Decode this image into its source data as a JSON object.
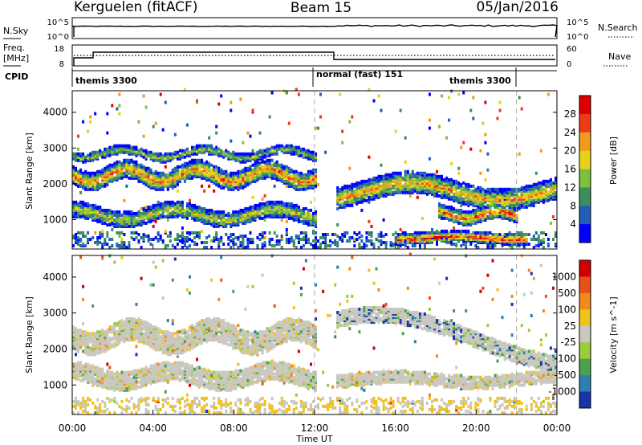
{
  "header": {
    "station": "Kerguelen (fitACF)",
    "beam": "Beam 15",
    "date": "05/Jan/2016"
  },
  "strip_labels": {
    "nsky": "N.Sky",
    "nsearch": "N.Search",
    "freq": "Freq.",
    "freq_unit": "[MHz]",
    "nave": "Nave",
    "cpid": "CPID"
  },
  "strip_ticks": {
    "noise_top": "10^5",
    "noise_bottom": "10^0",
    "noise_right_top": "10^5",
    "noise_right_bottom": "10^0",
    "freq_top": "18",
    "freq_bottom": "8",
    "nave_top": "60",
    "nave_bottom": "0"
  },
  "cpid_segments": [
    {
      "label": "themis 3300",
      "start_hour": 0,
      "end_hour": 12.0
    },
    {
      "label": "normal (fast) 151",
      "start_hour": 12.0,
      "end_hour": 22.0
    },
    {
      "label": "themis 3300",
      "start_hour": 22.0,
      "end_hour": 24.0
    }
  ],
  "chart_data": [
    {
      "type": "heatmap",
      "name": "power",
      "ylabel": "Slant Range [km]",
      "yticks": [
        "1000",
        "2000",
        "3000",
        "4000"
      ],
      "ylim": [
        180,
        4600
      ],
      "xlim": [
        0,
        24
      ],
      "colorbar": {
        "label": "Power [dB]",
        "ticks": [
          "4",
          "8",
          "12",
          "16",
          "20",
          "24",
          "28"
        ],
        "colors": [
          "#0000ff",
          "#1f5fb4",
          "#3a8f5a",
          "#7fbf3f",
          "#e6d21a",
          "#f39a1a",
          "#ee3a16",
          "#dd0000"
        ]
      },
      "bands": [
        {
          "start_hour": 0.0,
          "end_hour": 12.0,
          "center_km": 2200,
          "amp_km": 180,
          "period_h": 3.5,
          "width_km": 260,
          "level": 0.75
        },
        {
          "start_hour": 0.0,
          "end_hour": 12.0,
          "center_km": 1100,
          "amp_km": 150,
          "period_h": 5,
          "width_km": 220,
          "level": 0.55
        },
        {
          "start_hour": 0.0,
          "end_hour": 12.0,
          "center_km": 2800,
          "amp_km": 120,
          "period_h": 4,
          "width_km": 120,
          "level": 0.5
        },
        {
          "start_hour": 13.0,
          "end_hour": 24.0,
          "center_km": 1750,
          "amp_km": 250,
          "period_h": 9,
          "width_km": 300,
          "level": 0.7
        },
        {
          "start_hour": 16.0,
          "end_hour": 22.5,
          "center_km": 450,
          "amp_km": 40,
          "period_h": 6,
          "width_km": 150,
          "level": 0.9
        },
        {
          "start_hour": 18.0,
          "end_hour": 22.0,
          "center_km": 1100,
          "amp_km": 100,
          "period_h": 3,
          "width_km": 200,
          "level": 0.85
        }
      ]
    },
    {
      "type": "heatmap",
      "name": "velocity",
      "ylabel": "Slant Range [km]",
      "yticks": [
        "1000",
        "2000",
        "3000",
        "4000"
      ],
      "ylim": [
        180,
        4600
      ],
      "xlim": [
        0,
        24
      ],
      "xlabel": "Time UT",
      "xticks": [
        "00:00",
        "04:00",
        "08:00",
        "12:00",
        "16:00",
        "20:00",
        "00:00"
      ],
      "colorbar": {
        "label": "Velocity [m s^-1]",
        "ticks": [
          "1000",
          "500",
          "100",
          "25",
          "-25",
          "-100",
          "-500",
          "-1000"
        ],
        "colors": [
          "#1633a8",
          "#2f7fb0",
          "#4da04d",
          "#9ccc3c",
          "#c8c8c0",
          "#f0c21c",
          "#f08a1c",
          "#e8501c",
          "#d00000"
        ]
      },
      "bands": [
        {
          "start_hour": 0.0,
          "end_hour": 12.0,
          "center_km": 2300,
          "amp_km": 200,
          "period_h": 4,
          "width_km": 320,
          "level": 0.5
        },
        {
          "start_hour": 0.0,
          "end_hour": 12.0,
          "center_km": 1200,
          "amp_km": 150,
          "period_h": 5,
          "width_km": 260,
          "level": 0.5
        },
        {
          "start_hour": 13.0,
          "end_hour": 24.0,
          "center_km": 2200,
          "amp_km": 700,
          "period_h": 20,
          "width_km": 220,
          "level": 0.2
        },
        {
          "start_hour": 13.0,
          "end_hour": 24.0,
          "center_km": 1100,
          "amp_km": 80,
          "period_h": 8,
          "width_km": 180,
          "level": 0.5
        }
      ]
    }
  ]
}
